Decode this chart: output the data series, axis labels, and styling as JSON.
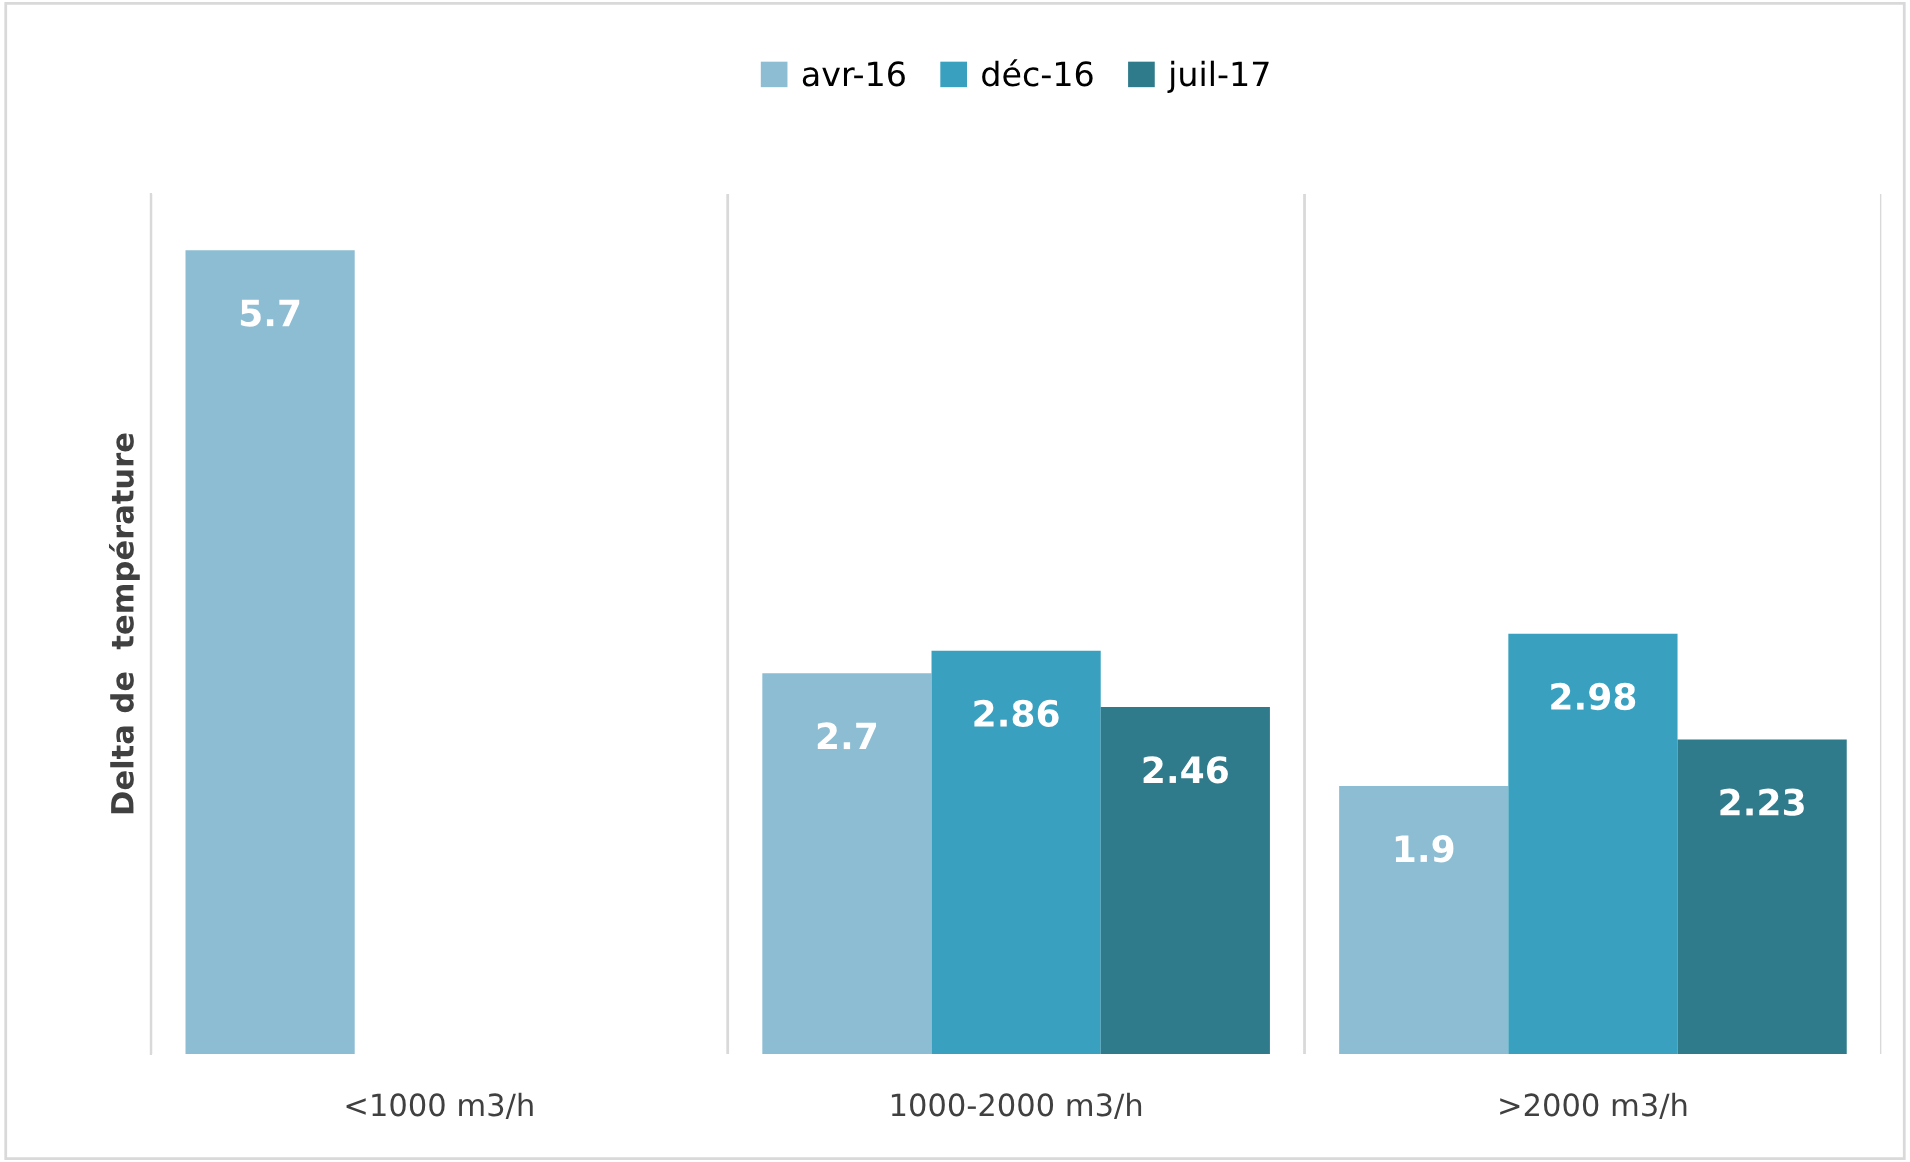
{
  "chart_data": {
    "type": "bar",
    "ylabel": "Delta de  température",
    "categories": [
      "<1000 m3/h",
      "1000-2000 m3/h",
      ">2000 m3/h"
    ],
    "series": [
      {
        "name": "avr-16",
        "color": "#8dbdd2",
        "values": [
          5.7,
          2.7,
          1.9
        ]
      },
      {
        "name": "déc-16",
        "color": "#3aa0bf",
        "values": [
          null,
          2.86,
          2.98
        ]
      },
      {
        "name": "juil-17",
        "color": "#2f7b8b",
        "values": [
          null,
          2.46,
          2.23
        ]
      }
    ],
    "data_labels": true,
    "legend": "top",
    "grid": "x"
  }
}
